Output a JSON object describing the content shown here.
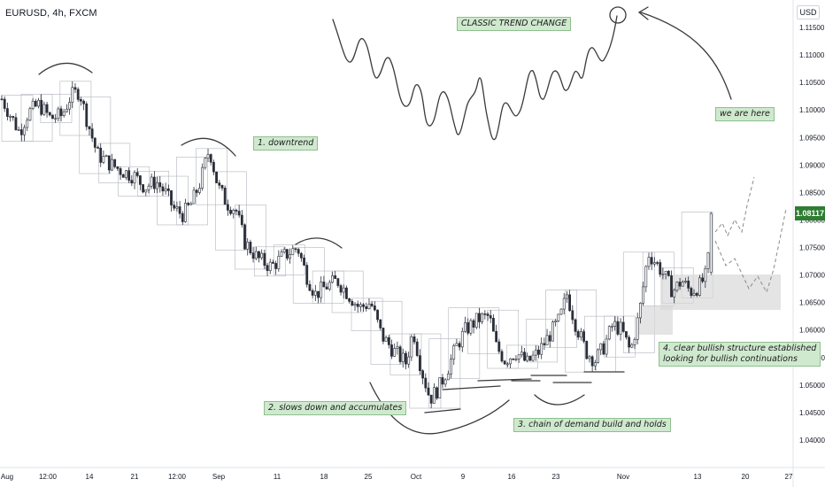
{
  "header": {
    "symbol": "EURUSD, 4h, FXCM",
    "currency": "USD"
  },
  "price_tag": {
    "label": "1.08117",
    "color": "#2e7d32"
  },
  "colors": {
    "candle_up": "#ffffff",
    "candle_down": "#2a2e39",
    "wick": "#2a2e39",
    "box": "#b2b5be",
    "annotation_bg": "#cfe9cf",
    "annotation_border": "#8fbf8f",
    "drawing": "#3a3a3a",
    "zone": "#d9d9d9"
  },
  "annotations": {
    "classic": "CLASSIC TREND CHANGE",
    "here": "we are here",
    "downtrend": "1. downtrend",
    "slows": "2. slows down and accumulates",
    "chain": "3. chain of demand build and holds",
    "bullish_line1": "4. clear bullish structure established",
    "bullish_line2": "looking for bullish continuations"
  },
  "chart_data": {
    "type": "candlestick",
    "title": "EURUSD, 4h, FXCM",
    "ylim": [
      1.035,
      1.12
    ],
    "y_ticks": [
      "1.11500",
      "1.11000",
      "1.10500",
      "1.10000",
      "1.09500",
      "1.09000",
      "1.08500",
      "1.08000",
      "1.07500",
      "1.07000",
      "1.06500",
      "1.06000",
      "1.05500",
      "1.05000",
      "1.04500",
      "1.04000"
    ],
    "x_ticks": [
      "Aug",
      "12:00",
      "14",
      "21",
      "12:00",
      "Sep",
      "11",
      "18",
      "25",
      "Oct",
      "9",
      "16",
      "23",
      "Nov",
      "13",
      "20",
      "27"
    ],
    "last_price": 1.08117,
    "price_path": [
      {
        "t": 0,
        "p": 1.102
      },
      {
        "t": 10,
        "p": 1.099
      },
      {
        "t": 20,
        "p": 1.096
      },
      {
        "t": 30,
        "p": 1.0995
      },
      {
        "t": 42,
        "p": 1.101
      },
      {
        "t": 55,
        "p": 1.0985
      },
      {
        "t": 68,
        "p": 1.099
      },
      {
        "t": 78,
        "p": 1.1025
      },
      {
        "t": 88,
        "p": 1.1035
      },
      {
        "t": 95,
        "p": 1.099
      },
      {
        "t": 108,
        "p": 1.092
      },
      {
        "t": 120,
        "p": 1.0905
      },
      {
        "t": 135,
        "p": 1.089
      },
      {
        "t": 150,
        "p": 1.088
      },
      {
        "t": 162,
        "p": 1.086
      },
      {
        "t": 175,
        "p": 1.087
      },
      {
        "t": 185,
        "p": 1.085
      },
      {
        "t": 195,
        "p": 1.082
      },
      {
        "t": 205,
        "p": 1.081
      },
      {
        "t": 215,
        "p": 1.083
      },
      {
        "t": 225,
        "p": 1.087
      },
      {
        "t": 235,
        "p": 1.093
      },
      {
        "t": 245,
        "p": 1.086
      },
      {
        "t": 255,
        "p": 1.083
      },
      {
        "t": 265,
        "p": 1.082
      },
      {
        "t": 275,
        "p": 1.076
      },
      {
        "t": 290,
        "p": 1.073
      },
      {
        "t": 305,
        "p": 1.0715
      },
      {
        "t": 320,
        "p": 1.0735
      },
      {
        "t": 335,
        "p": 1.075
      },
      {
        "t": 345,
        "p": 1.07
      },
      {
        "t": 355,
        "p": 1.0665
      },
      {
        "t": 368,
        "p": 1.068
      },
      {
        "t": 380,
        "p": 1.069
      },
      {
        "t": 395,
        "p": 1.066
      },
      {
        "t": 405,
        "p": 1.064
      },
      {
        "t": 418,
        "p": 1.065
      },
      {
        "t": 430,
        "p": 1.059
      },
      {
        "t": 445,
        "p": 1.056
      },
      {
        "t": 458,
        "p": 1.054
      },
      {
        "t": 466,
        "p": 1.06
      },
      {
        "t": 475,
        "p": 1.053
      },
      {
        "t": 485,
        "p": 1.0475
      },
      {
        "t": 495,
        "p": 1.0495
      },
      {
        "t": 505,
        "p": 1.053
      },
      {
        "t": 515,
        "p": 1.057
      },
      {
        "t": 525,
        "p": 1.06
      },
      {
        "t": 540,
        "p": 1.062
      },
      {
        "t": 552,
        "p": 1.0625
      },
      {
        "t": 560,
        "p": 1.057
      },
      {
        "t": 570,
        "p": 1.0545
      },
      {
        "t": 582,
        "p": 1.056
      },
      {
        "t": 595,
        "p": 1.054
      },
      {
        "t": 608,
        "p": 1.056
      },
      {
        "t": 620,
        "p": 1.059
      },
      {
        "t": 632,
        "p": 1.062
      },
      {
        "t": 640,
        "p": 1.0665
      },
      {
        "t": 650,
        "p": 1.061
      },
      {
        "t": 662,
        "p": 1.056
      },
      {
        "t": 672,
        "p": 1.0545
      },
      {
        "t": 682,
        "p": 1.057
      },
      {
        "t": 692,
        "p": 1.061
      },
      {
        "t": 702,
        "p": 1.06
      },
      {
        "t": 712,
        "p": 1.056
      },
      {
        "t": 722,
        "p": 1.063
      },
      {
        "t": 732,
        "p": 1.074
      },
      {
        "t": 742,
        "p": 1.072
      },
      {
        "t": 750,
        "p": 1.07
      },
      {
        "t": 760,
        "p": 1.067
      },
      {
        "t": 770,
        "p": 1.069
      },
      {
        "t": 780,
        "p": 1.067
      },
      {
        "t": 790,
        "p": 1.068
      },
      {
        "t": 798,
        "p": 1.07
      },
      {
        "t": 806,
        "p": 1.0812
      }
    ]
  }
}
